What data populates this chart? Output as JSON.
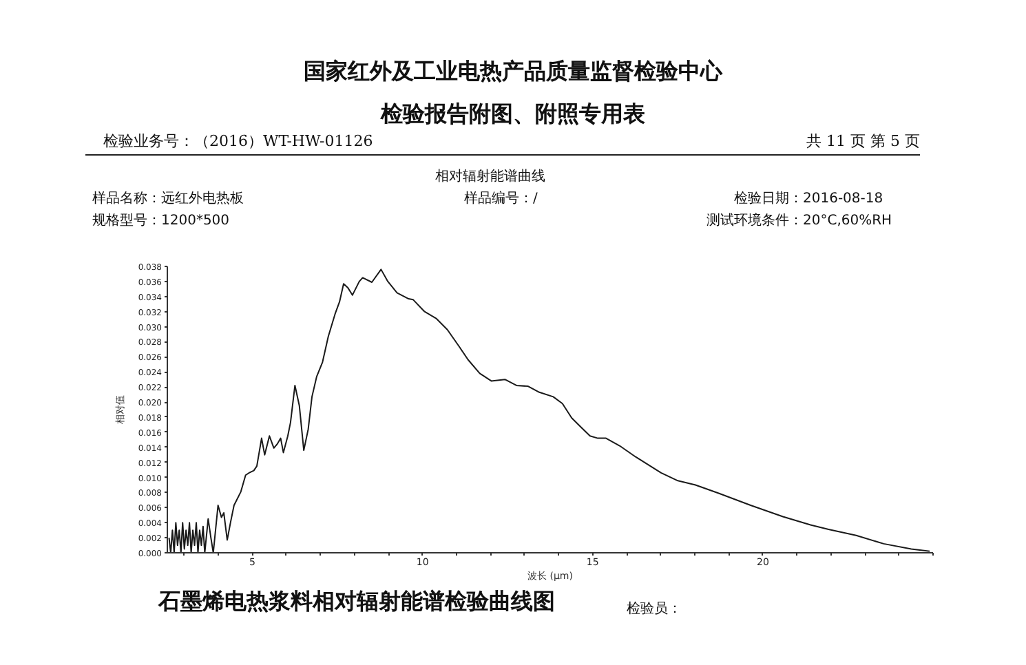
{
  "chart_data": {
    "type": "line",
    "title": "国家红外及工业电热产品质量监督检验中心",
    "subtitle": "检验报告附图、附照专用表",
    "xlabel": "波长 (μm)",
    "ylabel": "相对值",
    "color": "#1a1a1a",
    "grid": false,
    "x": [
      2.55,
      2.6,
      2.65,
      2.7,
      2.75,
      2.8,
      2.85,
      2.9,
      2.95,
      3.0,
      3.05,
      3.1,
      3.15,
      3.2,
      3.25,
      3.3,
      3.35,
      3.4,
      3.45,
      3.5,
      3.55,
      3.6,
      3.7,
      3.78,
      3.85,
      3.99,
      4.09,
      4.16,
      4.26,
      4.36,
      4.46,
      4.66,
      4.8,
      4.9,
      5.04,
      5.13,
      5.27,
      5.36,
      5.5,
      5.63,
      5.74,
      5.83,
      5.91,
      6.04,
      6.12,
      6.25,
      6.38,
      6.51,
      6.64,
      6.75,
      6.89,
      7.06,
      7.23,
      7.43,
      7.56,
      7.68,
      7.8,
      7.94,
      8.14,
      8.24,
      8.51,
      8.78,
      8.98,
      9.25,
      9.59,
      9.72,
      10.06,
      10.4,
      10.73,
      11.07,
      11.34,
      11.68,
      12.02,
      12.42,
      12.76,
      13.1,
      13.43,
      13.84,
      14.11,
      14.38,
      14.65,
      14.92,
      15.15,
      15.39,
      15.79,
      16.27,
      17.01,
      17.48,
      18.02,
      18.7,
      19.64,
      20.59,
      21.4,
      21.93,
      22.74,
      23.55,
      24.36,
      24.9
    ],
    "values": [
      0.002,
      0.0,
      0.003,
      0.0,
      0.004,
      0.001,
      0.003,
      0.0,
      0.004,
      0.0005,
      0.003,
      0.001,
      0.004,
      0.0,
      0.003,
      0.001,
      0.004,
      0.0,
      0.003,
      0.001,
      0.0035,
      0.0,
      0.0045,
      0.002,
      0.0,
      0.0063,
      0.0047,
      0.0053,
      0.0017,
      0.0041,
      0.0063,
      0.0081,
      0.0103,
      0.0106,
      0.0109,
      0.0115,
      0.0152,
      0.013,
      0.0155,
      0.0139,
      0.0145,
      0.0152,
      0.0133,
      0.0155,
      0.0173,
      0.0222,
      0.0195,
      0.0136,
      0.0164,
      0.0207,
      0.0234,
      0.0253,
      0.0287,
      0.0317,
      0.0333,
      0.0357,
      0.0352,
      0.0342,
      0.036,
      0.0365,
      0.0359,
      0.0376,
      0.036,
      0.0345,
      0.0337,
      0.0336,
      0.032,
      0.0311,
      0.0296,
      0.0274,
      0.0256,
      0.0238,
      0.0228,
      0.023,
      0.0222,
      0.0221,
      0.0213,
      0.0207,
      0.0198,
      0.0179,
      0.0167,
      0.0155,
      0.0152,
      0.0152,
      0.0142,
      0.0127,
      0.0106,
      0.0096,
      0.009,
      0.0079,
      0.0063,
      0.0048,
      0.0037,
      0.0031,
      0.0023,
      0.0012,
      0.0005,
      0.0002
    ],
    "xlim": [
      2.5,
      25
    ],
    "xticks": [
      {
        "value": 3,
        "label": null
      },
      {
        "value": 4,
        "label": null
      },
      5,
      {
        "value": 6,
        "label": null
      },
      {
        "value": 7,
        "label": null
      },
      {
        "value": 8,
        "label": null
      },
      {
        "value": 9,
        "label": null
      },
      10,
      {
        "value": 11,
        "label": null
      },
      {
        "value": 12,
        "label": null
      },
      {
        "value": 13,
        "label": null
      },
      {
        "value": 14,
        "label": null
      },
      15,
      {
        "value": 16,
        "label": null
      },
      {
        "value": 17,
        "label": null
      },
      {
        "value": 18,
        "label": null
      },
      {
        "value": 19,
        "label": null
      },
      20,
      {
        "value": 21,
        "label": null
      },
      {
        "value": 22,
        "label": null
      },
      {
        "value": 23,
        "label": null
      },
      {
        "value": 24,
        "label": null
      },
      {
        "value": 25,
        "label": null
      }
    ],
    "ylim": [
      0,
      0.038
    ],
    "yticks": [
      {
        "value": 0,
        "label": "0.000"
      },
      0.002,
      0.004,
      0.006,
      0.008,
      {
        "value": 0.01,
        "label": "0.010"
      },
      0.012,
      0.014,
      0.016,
      0.018,
      {
        "value": 0.02,
        "label": "0.020"
      },
      0.022,
      0.024,
      0.026,
      0.028,
      {
        "value": 0.03,
        "label": "0.030"
      },
      0.032,
      0.034,
      0.036,
      0.038
    ],
    "annotations": [
      "检验业务号：（2016）WT-HW-01126",
      "共 11 页 第 5 页",
      "相对辐射能谱曲线",
      "样品名称：远红外电热板",
      "样品编号：/",
      "检验日期：2016-08-18",
      "规格型号：1200*500",
      "测试环境条件：20°C,60%RH",
      "石墨烯电热浆料相对辐射能谱检验曲线图",
      "检验员："
    ]
  }
}
